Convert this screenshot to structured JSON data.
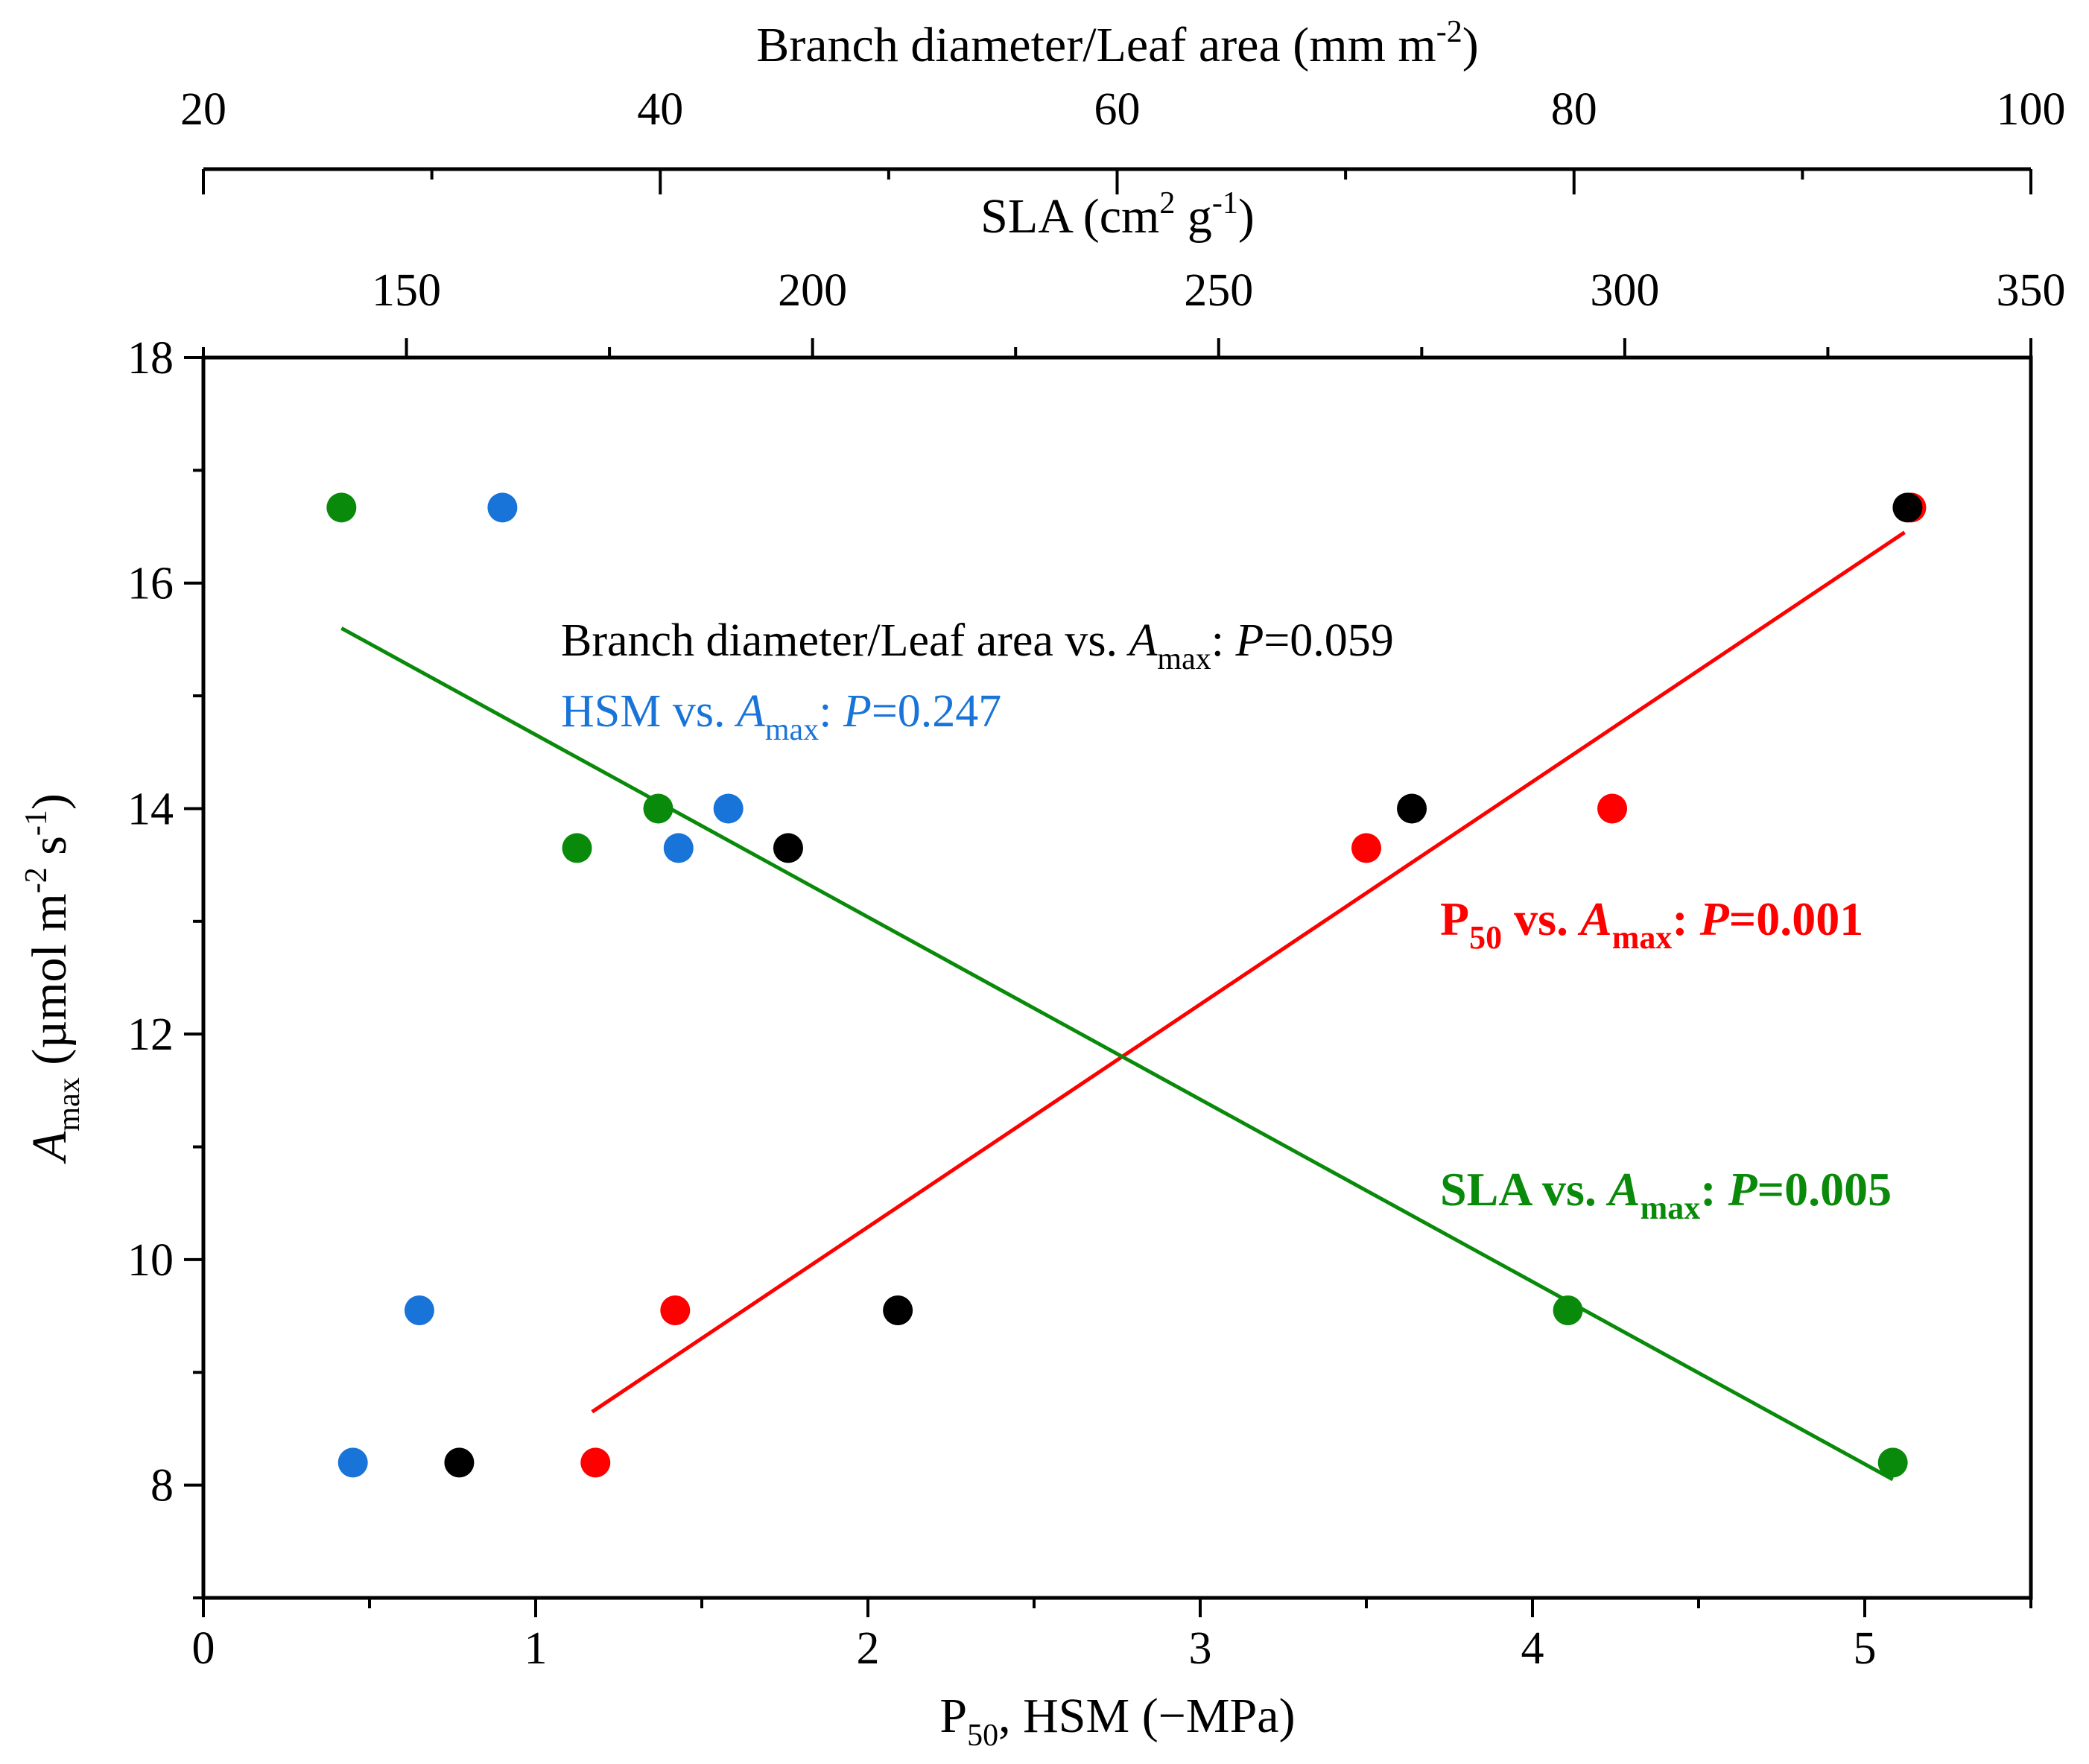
{
  "chart_data": {
    "type": "scatter",
    "axes": {
      "bottom": {
        "label": "P",
        "label_sub": "50",
        "label_rest": ", HSM (−MPa)",
        "range": [
          0,
          5.5
        ],
        "ticks": [
          0,
          1,
          2,
          3,
          4,
          5
        ],
        "tick_labels": [
          "0",
          "1",
          "2",
          "3",
          "4",
          "5"
        ]
      },
      "left": {
        "label": "A",
        "label_sub": "max",
        "label_rest": " (µmol m",
        "label_sup1": "-2",
        "label_mid": " s",
        "label_sup2": "-1",
        "label_end": ")",
        "range": [
          7,
          18
        ],
        "ticks": [
          8,
          10,
          12,
          14,
          16,
          18
        ],
        "tick_labels": [
          "8",
          "10",
          "12",
          "14",
          "16",
          "18"
        ]
      },
      "top_inner": {
        "label": "SLA (cm",
        "label_sup": "2",
        "label_mid": " g",
        "label_sup2": "-1",
        "label_end": ")",
        "range": [
          125,
          350
        ],
        "ticks": [
          150,
          200,
          250,
          300,
          350
        ],
        "tick_labels": [
          "150",
          "200",
          "250",
          "300",
          "350"
        ]
      },
      "top_outer": {
        "label": "Branch diameter/Leaf area (mm m",
        "label_sup": "-2",
        "label_end": ")",
        "range": [
          20,
          100
        ],
        "ticks": [
          20,
          40,
          60,
          80,
          100
        ],
        "tick_labels": [
          "20",
          "40",
          "60",
          "80",
          "100"
        ]
      }
    },
    "series": [
      {
        "name": "P50",
        "axis": "bottom",
        "color": "#ff0000",
        "points": [
          [
            1.18,
            8.2
          ],
          [
            1.42,
            9.55
          ],
          [
            3.5,
            13.65
          ],
          [
            4.24,
            14.0
          ],
          [
            5.14,
            16.67
          ]
        ],
        "fit": {
          "x": [
            1.17,
            5.12
          ],
          "y": [
            8.65,
            16.45
          ]
        }
      },
      {
        "name": "HSM",
        "axis": "bottom",
        "color": "#1874d8",
        "points": [
          [
            0.45,
            8.2
          ],
          [
            0.65,
            9.55
          ],
          [
            0.9,
            16.67
          ],
          [
            1.43,
            13.65
          ],
          [
            1.58,
            14.0
          ]
        ]
      },
      {
        "name": "Branch diameter/Leaf area",
        "axis": "top_outer",
        "color": "#000000",
        "points": [
          [
            31.2,
            8.2
          ],
          [
            45.6,
            13.65
          ],
          [
            50.4,
            9.55
          ],
          [
            72.9,
            14.0
          ],
          [
            94.6,
            16.67
          ]
        ]
      },
      {
        "name": "SLA",
        "axis": "top_inner",
        "color": "#0a8a0a",
        "points": [
          [
            142,
            16.67
          ],
          [
            171,
            13.65
          ],
          [
            181,
            14.0
          ],
          [
            293,
            9.55
          ],
          [
            333,
            8.2
          ]
        ],
        "fit": {
          "x": [
            142,
            333
          ],
          "y": [
            15.6,
            8.05
          ]
        }
      }
    ],
    "annotations": [
      {
        "name": "branch",
        "color": "#000000",
        "bold": false,
        "pre": "Branch diameter/Leaf area vs. ",
        "var": "A",
        "sub": "max",
        "sep": ": ",
        "p": "P",
        "val": "=0.059"
      },
      {
        "name": "hsm",
        "color": "#1874d8",
        "bold": false,
        "pre": "HSM vs. ",
        "var": "A",
        "sub": "max",
        "sep": ": ",
        "p": "P",
        "val": "=0.247"
      },
      {
        "name": "p50",
        "color": "#ff0000",
        "bold": true,
        "pre": "P",
        "pre_sub": "50",
        "pre_rest": " vs. ",
        "var": "A",
        "sub": "max",
        "sep": ": ",
        "p": "P",
        "val": "=0.001"
      },
      {
        "name": "sla",
        "color": "#0a8a0a",
        "bold": true,
        "pre": "SLA vs. ",
        "var": "A",
        "sub": "max",
        "sep": ": ",
        "p": "P",
        "val": "=0.005"
      }
    ]
  }
}
